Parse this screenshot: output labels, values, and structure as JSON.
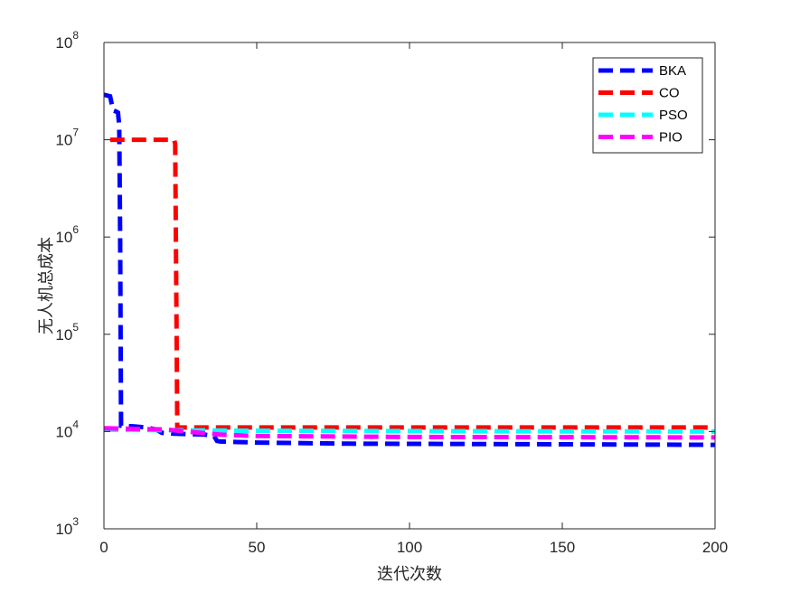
{
  "chart_data": {
    "type": "line",
    "xlabel": "迭代次数",
    "ylabel": "无人机总成本",
    "xlim": [
      0,
      200
    ],
    "ylim": [
      1000,
      100000000
    ],
    "y_scale": "log",
    "grid": false,
    "legend_position": "top-right",
    "x_ticks": [
      "0",
      "50",
      "100",
      "150",
      "200"
    ],
    "y_ticks": [
      {
        "base": "10",
        "exp": "3"
      },
      {
        "base": "10",
        "exp": "4"
      },
      {
        "base": "10",
        "exp": "5"
      },
      {
        "base": "10",
        "exp": "6"
      },
      {
        "base": "10",
        "exp": "7"
      },
      {
        "base": "10",
        "exp": "8"
      }
    ],
    "series": [
      {
        "name": "BKA",
        "color": "#0000ff",
        "points": [
          [
            0,
            29000000
          ],
          [
            2,
            28000000
          ],
          [
            3,
            20000000
          ],
          [
            4,
            19500000
          ],
          [
            4.6,
            19000000
          ],
          [
            5,
            14000000
          ],
          [
            5.3,
            1000000
          ],
          [
            5.6,
            11500
          ],
          [
            6,
            11500
          ],
          [
            10,
            11300
          ],
          [
            14,
            11000
          ],
          [
            17,
            10500
          ],
          [
            19,
            9700
          ],
          [
            23,
            9500
          ],
          [
            33,
            9300
          ],
          [
            36,
            9000
          ],
          [
            37,
            8000
          ],
          [
            38,
            7900
          ],
          [
            50,
            7700
          ],
          [
            80,
            7500
          ],
          [
            150,
            7400
          ],
          [
            200,
            7300
          ]
        ]
      },
      {
        "name": "CO",
        "color": "#ff0000",
        "points": [
          [
            2,
            10000000
          ],
          [
            23,
            10000000
          ],
          [
            23.3,
            9000000
          ],
          [
            24,
            11000
          ],
          [
            200,
            11000
          ]
        ]
      },
      {
        "name": "PSO",
        "color": "#00ffff",
        "points": [
          [
            0,
            10500
          ],
          [
            5,
            10400
          ],
          [
            50,
            10200
          ],
          [
            100,
            10100
          ],
          [
            150,
            10050
          ],
          [
            200,
            10000
          ]
        ]
      },
      {
        "name": "PIO",
        "color": "#ff00ff",
        "points": [
          [
            0,
            10800
          ],
          [
            20,
            10500
          ],
          [
            38,
            9300
          ],
          [
            50,
            9000
          ],
          [
            100,
            8800
          ],
          [
            200,
            8700
          ]
        ]
      }
    ]
  }
}
